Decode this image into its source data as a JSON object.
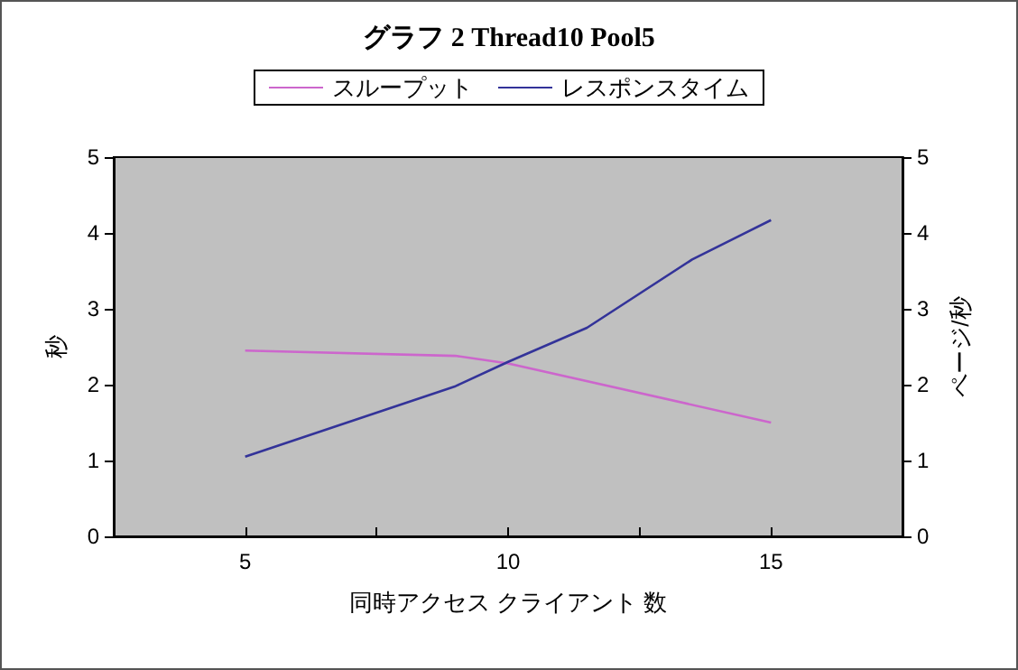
{
  "chart_data": {
    "type": "line",
    "title": "グラフ 2 Thread10 Pool5",
    "xlabel": "同時アクセス クライアント 数",
    "ylabel": "秒",
    "y2label": "ページ/秒",
    "series": [
      {
        "name": "スループット",
        "color": "#cc66cc",
        "axis": "y2",
        "x": [
          5,
          9,
          10,
          15
        ],
        "values": [
          2.45,
          2.38,
          2.28,
          1.5
        ]
      },
      {
        "name": "レスポンスタイム",
        "color": "#333399",
        "x": [
          5,
          9,
          10,
          11.5,
          13.5,
          15
        ],
        "values": [
          1.05,
          1.98,
          2.3,
          2.75,
          3.65,
          4.17
        ]
      }
    ],
    "xlim": [
      2.5,
      17.5
    ],
    "xticks": [
      {
        "value": 2.5,
        "label": null
      },
      5,
      {
        "value": 7.5,
        "label": null
      },
      10,
      {
        "value": 12.5,
        "label": null
      },
      15,
      {
        "value": 17.5,
        "label": null
      }
    ],
    "ylim": [
      0,
      5
    ],
    "yticks": [
      0,
      1,
      2,
      3,
      4,
      5
    ],
    "y2lim": [
      0,
      5
    ],
    "y2ticks": [
      0,
      1,
      2,
      3,
      4,
      5
    ],
    "grid": false,
    "legend": "top",
    "marker": "none",
    "line_style": "solid"
  }
}
